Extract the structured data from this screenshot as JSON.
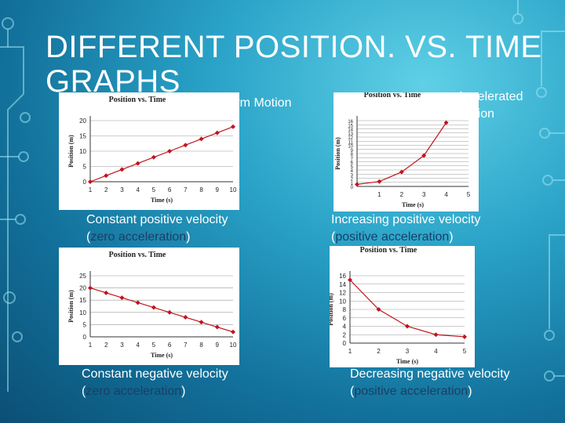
{
  "slide": {
    "title": "DIFFERENT POSITION. VS. TIME GRAPHS",
    "uniform_label": "Uniform Motion",
    "accelerated_label_1": "Accelerated",
    "accelerated_label_2": "Motion"
  },
  "descriptions": [
    {
      "line1": "Constant positive velocity",
      "open": "(",
      "accel": "zero acceleration",
      "close": ")"
    },
    {
      "line1": "Increasing positive velocity",
      "open": "(",
      "accel": "positive acceleration",
      "close": ")"
    },
    {
      "line1": "Constant negative velocity",
      "open": "(",
      "accel": "zero acceleration",
      "close": ")"
    },
    {
      "line1": "Decreasing negative velocity",
      "open": "(",
      "accel": "positive acceleration",
      "close": ")"
    }
  ],
  "colors": {
    "series": "#c0141c",
    "grid": "#999999",
    "highlight": "#1a3f66"
  },
  "chart_data": [
    {
      "type": "line",
      "title": "Position vs. Time",
      "xlabel": "Time (s)",
      "ylabel": "Position (m)",
      "x": [
        1,
        2,
        3,
        4,
        5,
        6,
        7,
        8,
        9,
        10
      ],
      "series": [
        {
          "values": [
            0,
            2,
            4,
            6,
            8,
            10,
            12,
            14,
            16,
            18
          ]
        }
      ],
      "xticks": [
        1,
        2,
        3,
        4,
        5,
        6,
        7,
        8,
        9,
        10
      ],
      "yticks": [
        0,
        5,
        10,
        15,
        20
      ],
      "ylim": [
        0,
        20
      ],
      "grid": "horizontal"
    },
    {
      "type": "line",
      "title": "Position vs. Time",
      "xlabel": "Time (s)",
      "ylabel": "Position (m)",
      "x": [
        0,
        1,
        2,
        3,
        4
      ],
      "series": [
        {
          "values": [
            0.5,
            1.2,
            3.5,
            7.5,
            15.5
          ]
        }
      ],
      "xticks": [
        1,
        2,
        3,
        4,
        5
      ],
      "yticks": [
        0,
        1,
        2,
        3,
        4,
        5,
        6,
        7,
        8,
        9,
        10,
        11,
        12,
        13,
        14,
        15,
        16
      ],
      "ylim": [
        0,
        16
      ],
      "grid": "horizontal"
    },
    {
      "type": "line",
      "title": "Position vs. Time",
      "xlabel": "Time (s)",
      "ylabel": "Position (m)",
      "x": [
        1,
        2,
        3,
        4,
        5,
        6,
        7,
        8,
        9,
        10
      ],
      "series": [
        {
          "values": [
            20,
            18,
            16,
            14,
            12,
            10,
            8,
            6,
            4,
            2
          ]
        }
      ],
      "xticks": [
        1,
        2,
        3,
        4,
        5,
        6,
        7,
        8,
        9,
        10
      ],
      "yticks": [
        0,
        5,
        10,
        15,
        20,
        25
      ],
      "ylim": [
        0,
        25
      ],
      "grid": "horizontal"
    },
    {
      "type": "line",
      "title": "Position vs. Time",
      "xlabel": "Time (s)",
      "ylabel": "Position (m)",
      "x": [
        1,
        2,
        3,
        4,
        5
      ],
      "series": [
        {
          "values": [
            15,
            8,
            4,
            2,
            1.5
          ]
        }
      ],
      "xticks": [
        1,
        2,
        3,
        4,
        5
      ],
      "yticks": [
        0,
        2,
        4,
        6,
        8,
        10,
        12,
        14,
        16
      ],
      "ylim": [
        0,
        16
      ],
      "grid": "horizontal"
    }
  ]
}
